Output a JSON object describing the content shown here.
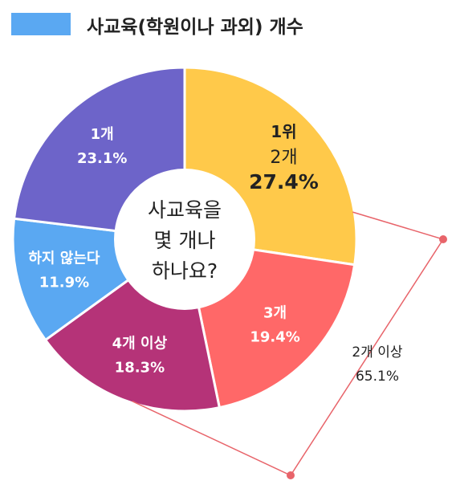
{
  "legend": {
    "title": "사교육(학원이나 과외) 개수",
    "swatch_color": "#5aa8f2"
  },
  "center_label": [
    "사교육을",
    "몇 개나",
    "하나요?"
  ],
  "bracket_label": {
    "line1": "2개 이상",
    "line2": "65.1%"
  },
  "bracket_color": "#e8646a",
  "chart_data": {
    "type": "pie",
    "donut": true,
    "title": "사교육(학원이나 과외) 개수",
    "slices": [
      {
        "label": "2개",
        "rank_label": "1위",
        "value": 27.4,
        "value_label": "27.4%",
        "color": "#ffc94a",
        "text_color": "#222222"
      },
      {
        "label": "3개",
        "value": 19.4,
        "value_label": "19.4%",
        "color": "#ff6868",
        "text_color": "#ffffff"
      },
      {
        "label": "4개 이상",
        "value": 18.3,
        "value_label": "18.3%",
        "color": "#b53378",
        "text_color": "#ffffff"
      },
      {
        "label": "하지 않는다",
        "value": 11.9,
        "value_label": "11.9%",
        "color": "#5aa8f2",
        "text_color": "#ffffff"
      },
      {
        "label": "1개",
        "value": 23.1,
        "value_label": "23.1%",
        "color": "#6d64c9",
        "text_color": "#ffffff"
      }
    ]
  }
}
